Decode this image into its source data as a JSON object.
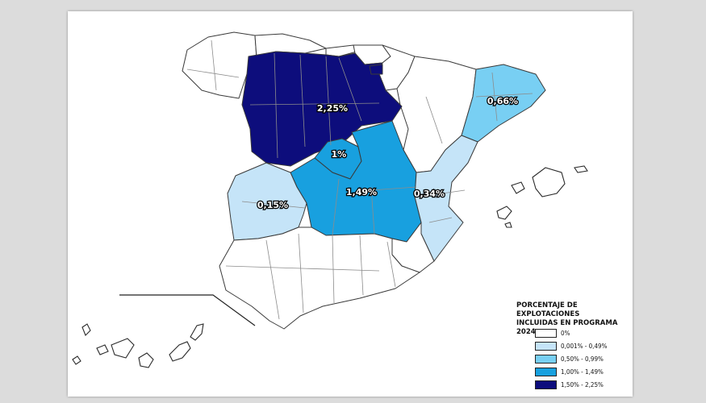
{
  "legend": {
    "title_line1": "PORCENTAJE DE EXPLOTACIONES",
    "title_line2": "INCLUIDAS EN PROGRAMA 2024",
    "items": [
      {
        "label": "0%",
        "color": "#ffffff"
      },
      {
        "label": "0,001% - 0,49%",
        "color": "#c5e4f8"
      },
      {
        "label": "0,50% - 0,99%",
        "color": "#78cff3"
      },
      {
        "label": "1,00% - 1,49%",
        "color": "#18a0df"
      },
      {
        "label": "1,50% - 2,25%",
        "color": "#0d0d7c"
      }
    ]
  },
  "regions": {
    "castilla_leon": {
      "label": "2,25%",
      "color": "#0d0d7c"
    },
    "castilla_la_mancha": {
      "label": "1,49%",
      "color": "#18a0df"
    },
    "madrid": {
      "label": "1%",
      "color": "#18a0df"
    },
    "cataluna": {
      "label": "0,66%",
      "color": "#78cff3"
    },
    "valencia": {
      "label": "0,34%",
      "color": "#c5e4f8"
    },
    "extremadura": {
      "label": "0,15%",
      "color": "#c5e4f8"
    },
    "la_rioja": {
      "color": "#0d0d7c"
    }
  }
}
